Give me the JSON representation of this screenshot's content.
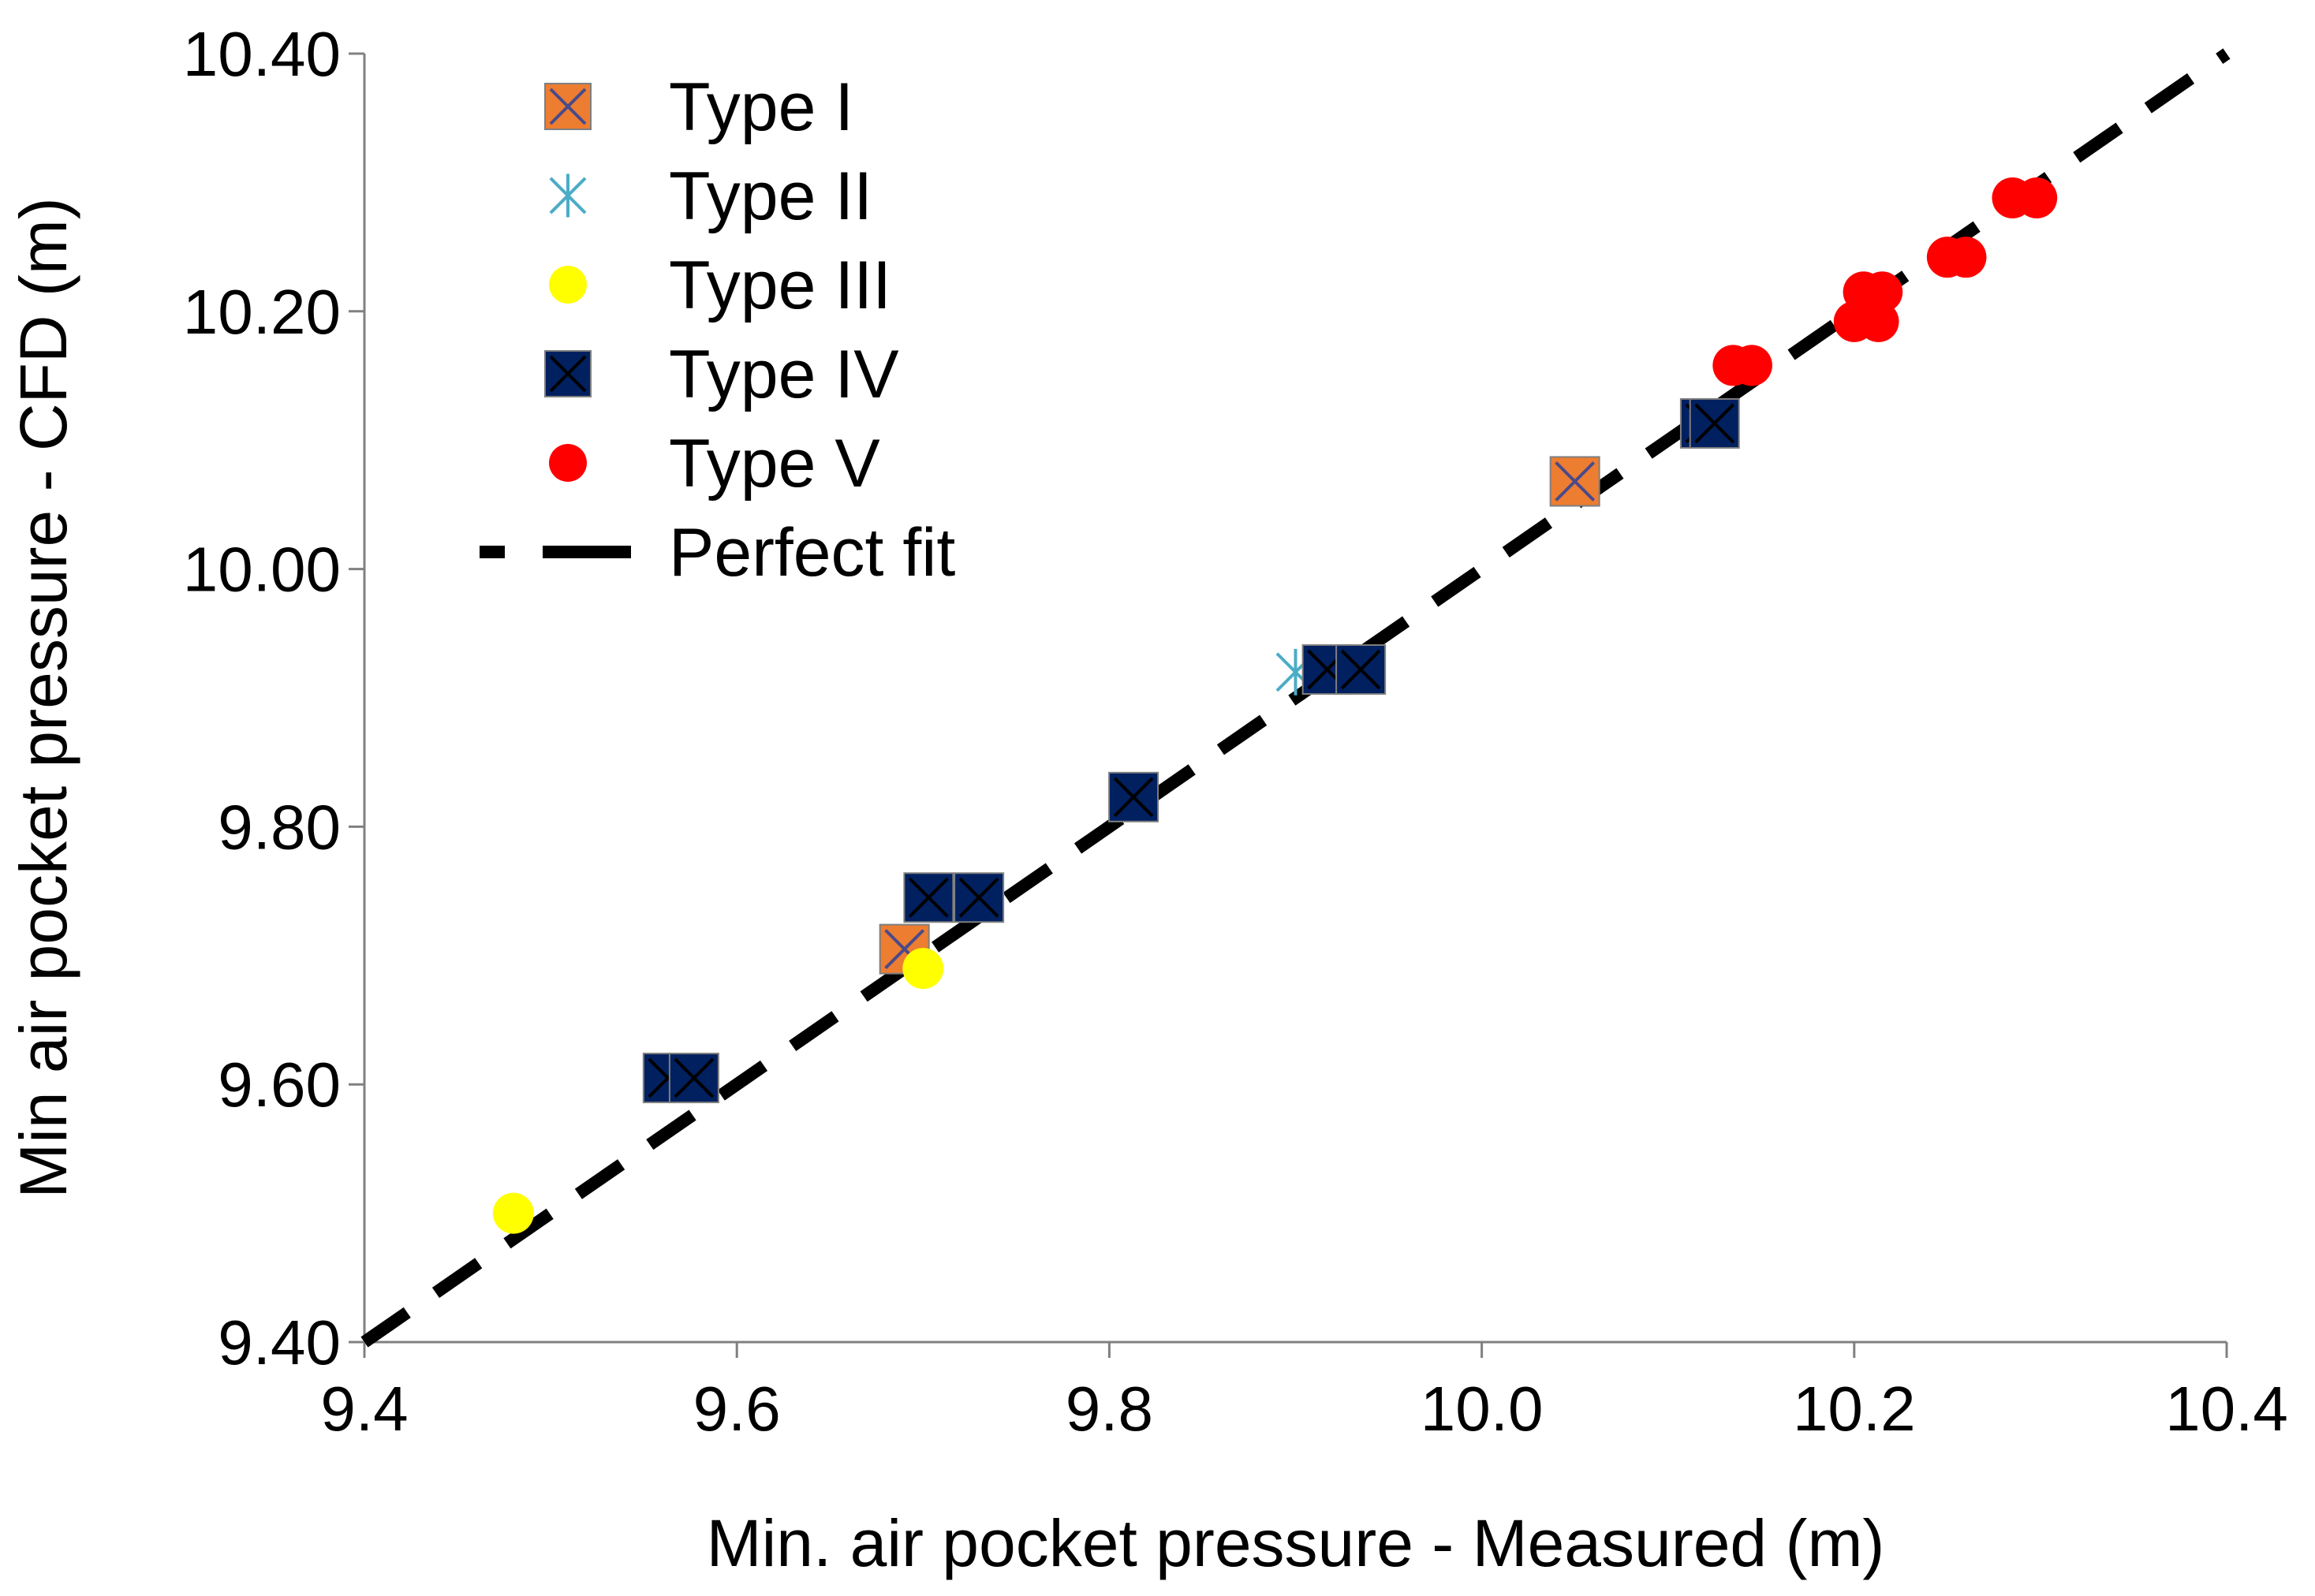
{
  "chart_data": {
    "type": "scatter",
    "title": "",
    "xlabel": "Min. air pocket pressure - Measured (m)",
    "ylabel": "Min air pocket pressure - CFD (m)",
    "xlim": [
      9.4,
      10.4
    ],
    "ylim": [
      9.4,
      10.4
    ],
    "xticks": [
      "9.4",
      "9.6",
      "9.8",
      "10.0",
      "10.2",
      "10.4"
    ],
    "yticks": [
      "9.40",
      "9.60",
      "9.80",
      "10.00",
      "10.20",
      "10.40"
    ],
    "grid": false,
    "legend_position": "top-left",
    "series": [
      {
        "name": "Type I",
        "marker": "square-x",
        "color": "#ED7D31",
        "points": [
          [
            9.69,
            9.705
          ],
          [
            10.05,
            10.068
          ]
        ]
      },
      {
        "name": "Type II",
        "marker": "asterisk",
        "color": "#4BACC6",
        "points": [
          [
            9.9,
            9.92
          ]
        ]
      },
      {
        "name": "Type III",
        "marker": "circle",
        "color": "#FFFF00",
        "points": [
          [
            9.48,
            9.5
          ],
          [
            9.7,
            9.69
          ]
        ]
      },
      {
        "name": "Type IV",
        "marker": "square-x",
        "color": "#002060",
        "points": [
          [
            9.563,
            9.605
          ],
          [
            9.577,
            9.605
          ],
          [
            9.703,
            9.745
          ],
          [
            9.73,
            9.745
          ],
          [
            9.813,
            9.823
          ],
          [
            9.917,
            9.922
          ],
          [
            9.935,
            9.922
          ],
          [
            10.12,
            10.113
          ],
          [
            10.125,
            10.113
          ]
        ]
      },
      {
        "name": "Type V",
        "marker": "circle",
        "color": "#FF0000",
        "points": [
          [
            10.135,
            10.158
          ],
          [
            10.145,
            10.158
          ],
          [
            10.2,
            10.192
          ],
          [
            10.213,
            10.192
          ],
          [
            10.205,
            10.215
          ],
          [
            10.215,
            10.215
          ],
          [
            10.25,
            10.242
          ],
          [
            10.26,
            10.242
          ],
          [
            10.285,
            10.288
          ],
          [
            10.298,
            10.288
          ]
        ]
      },
      {
        "name": "Perfect fit",
        "marker": "dashed-line",
        "color": "#000000",
        "points": [
          [
            9.4,
            9.4
          ],
          [
            10.4,
            10.4
          ]
        ]
      }
    ]
  }
}
